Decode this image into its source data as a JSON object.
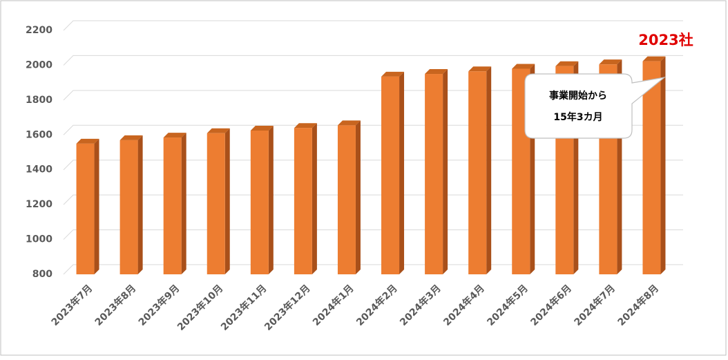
{
  "chart_data": {
    "type": "bar3d",
    "categories": [
      "2023年7月",
      "2023年8月",
      "2023年9月",
      "2023年10月",
      "2023年11月",
      "2023年12月",
      "2024年1月",
      "2024年2月",
      "2024年3月",
      "2024年4月",
      "2024年5月",
      "2024年6月",
      "2024年7月",
      "2024年8月"
    ],
    "values": [
      1550,
      1570,
      1585,
      1610,
      1625,
      1640,
      1655,
      1935,
      1950,
      1965,
      1980,
      1995,
      2005,
      2023
    ],
    "color": "#ed7d31",
    "ylim": [
      800,
      2200
    ],
    "yticks": [
      800,
      1000,
      1200,
      1400,
      1600,
      1800,
      2000,
      2200
    ],
    "grid": true,
    "annotation": "2023社",
    "callout": [
      "事業開始から",
      "15年3カ月"
    ]
  }
}
